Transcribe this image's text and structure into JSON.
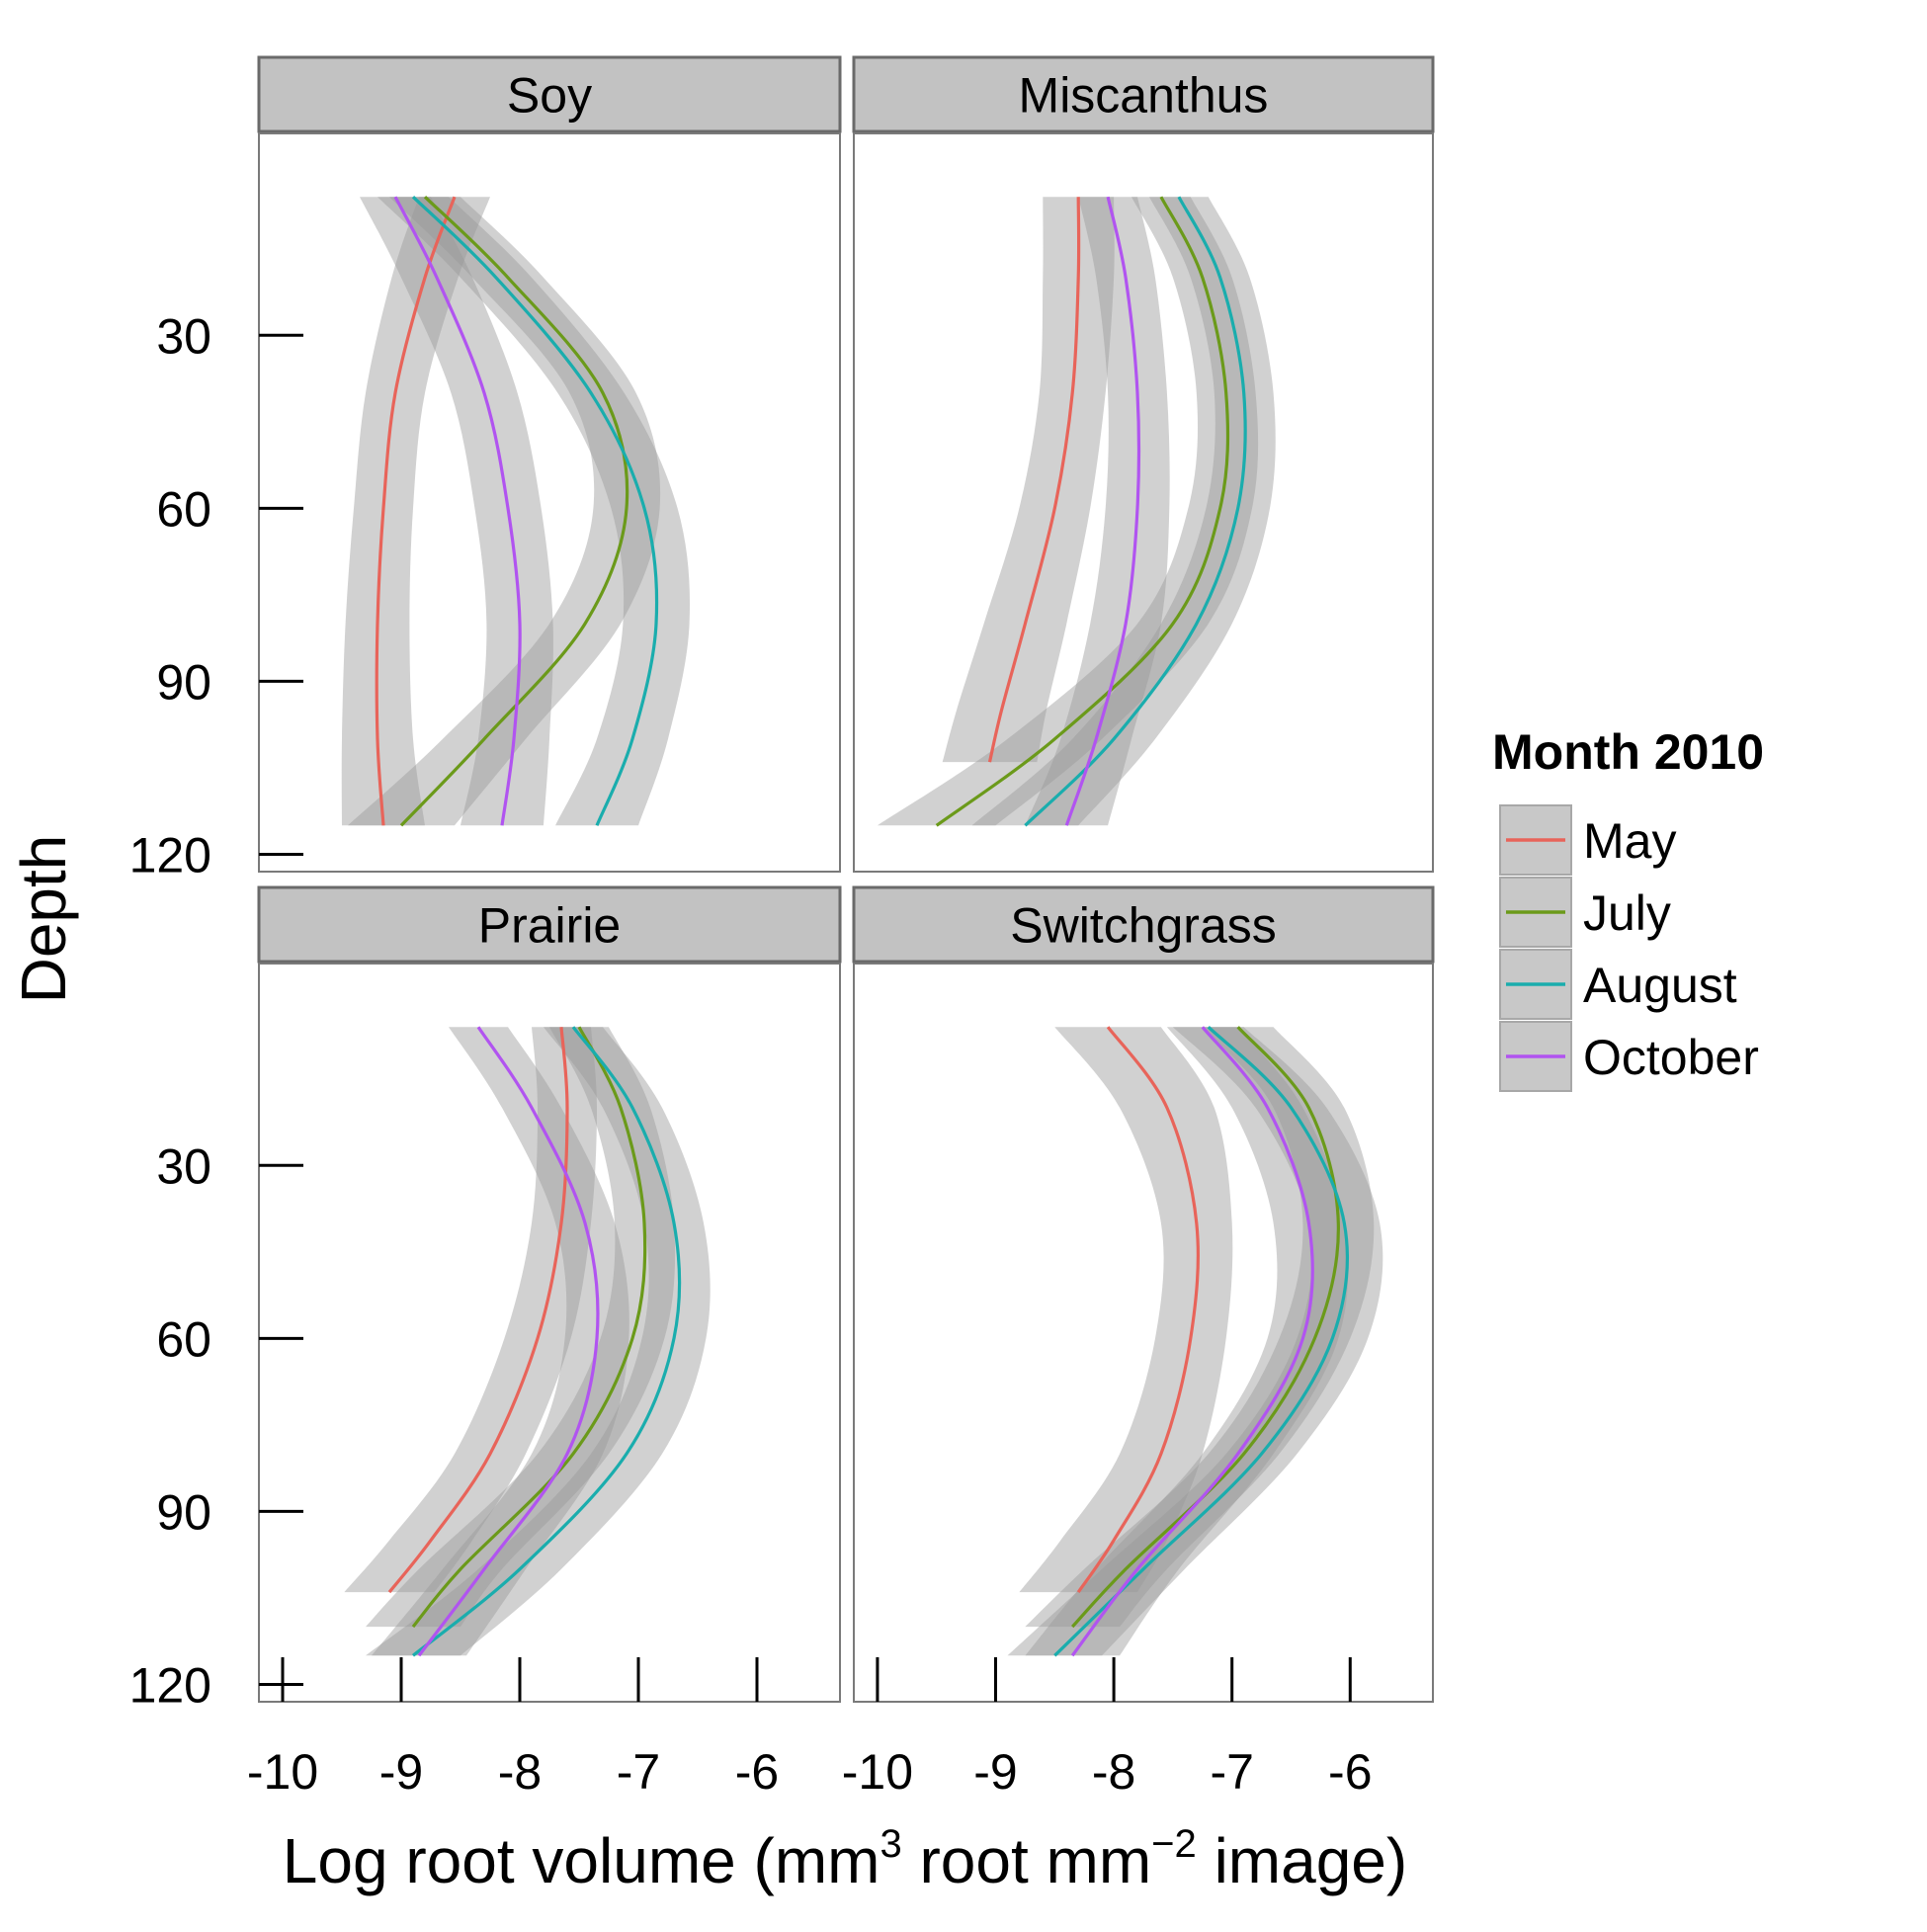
{
  "chart_data": {
    "type": "line",
    "facets": [
      "Soy",
      "Miscanthus",
      "Prairie",
      "Switchgrass"
    ],
    "xlabel": "Log root volume (mm",
    "xlabel_sup1": "3",
    "xlabel_mid": " root mm",
    "xlabel_sup2": "−2",
    "xlabel_end": " image)",
    "ylabel": "Depth",
    "xlim": [
      -10.2,
      -5.3
    ],
    "ylim": [
      -5,
      123
    ],
    "y_reversed": true,
    "x_ticks": [
      "-10",
      "-9",
      "-8",
      "-7",
      "-6"
    ],
    "y_ticks": [
      "30",
      "60",
      "90",
      "120"
    ],
    "legend": {
      "title": "Month 2010",
      "position": "right",
      "entries": [
        {
          "label": "May",
          "color": "#e8645a"
        },
        {
          "label": "July",
          "color": "#6b9a1a"
        },
        {
          "label": "August",
          "color": "#1aadad"
        },
        {
          "label": "October",
          "color": "#b154f0"
        }
      ]
    },
    "panels": [
      {
        "name": "Soy",
        "series": [
          {
            "name": "May",
            "depth": [
              6,
              20,
              40,
              60,
              80,
              100,
              115
            ],
            "x": [
              -8.55,
              -8.8,
              -9.05,
              -9.15,
              -9.2,
              -9.2,
              -9.15
            ],
            "se": [
              0.3,
              0.28,
              0.25,
              0.25,
              0.27,
              0.3,
              0.35
            ]
          },
          {
            "name": "July",
            "depth": [
              6,
              20,
              40,
              60,
              80,
              100,
              115
            ],
            "x": [
              -8.8,
              -8.1,
              -7.3,
              -7.1,
              -7.45,
              -8.3,
              -9.0
            ],
            "se": [
              0.3,
              0.3,
              0.28,
              0.28,
              0.3,
              0.35,
              0.45
            ]
          },
          {
            "name": "August",
            "depth": [
              6,
              20,
              40,
              60,
              80,
              100,
              115
            ],
            "x": [
              -8.9,
              -8.2,
              -7.4,
              -6.95,
              -6.85,
              -7.05,
              -7.35
            ],
            "se": [
              0.3,
              0.3,
              0.28,
              0.28,
              0.28,
              0.3,
              0.35
            ]
          },
          {
            "name": "October",
            "depth": [
              6,
              20,
              40,
              60,
              80,
              100,
              115
            ],
            "x": [
              -9.05,
              -8.7,
              -8.3,
              -8.1,
              -8.0,
              -8.05,
              -8.15
            ],
            "se": [
              0.3,
              0.3,
              0.28,
              0.28,
              0.28,
              0.3,
              0.35
            ]
          }
        ]
      },
      {
        "name": "Miscanthus",
        "series": [
          {
            "name": "May",
            "depth": [
              6,
              20,
              40,
              60,
              80,
              95,
              104
            ],
            "x": [
              -8.3,
              -8.3,
              -8.35,
              -8.5,
              -8.75,
              -8.95,
              -9.05
            ],
            "se": [
              0.3,
              0.3,
              0.28,
              0.3,
              0.35,
              0.38,
              0.4
            ]
          },
          {
            "name": "July",
            "depth": [
              6,
              20,
              40,
              60,
              80,
              100,
              115
            ],
            "x": [
              -7.6,
              -7.25,
              -7.05,
              -7.1,
              -7.5,
              -8.5,
              -9.5
            ],
            "se": [
              0.25,
              0.25,
              0.25,
              0.27,
              0.3,
              0.4,
              0.5
            ]
          },
          {
            "name": "August",
            "depth": [
              6,
              20,
              40,
              60,
              80,
              100,
              115
            ],
            "x": [
              -7.45,
              -7.1,
              -6.9,
              -6.95,
              -7.3,
              -8.0,
              -8.75
            ],
            "se": [
              0.25,
              0.25,
              0.25,
              0.27,
              0.3,
              0.35,
              0.45
            ]
          },
          {
            "name": "October",
            "depth": [
              6,
              20,
              40,
              60,
              80,
              100,
              115
            ],
            "x": [
              -8.05,
              -7.9,
              -7.8,
              -7.8,
              -7.9,
              -8.15,
              -8.4
            ],
            "se": [
              0.25,
              0.25,
              0.25,
              0.27,
              0.3,
              0.3,
              0.35
            ]
          }
        ]
      },
      {
        "name": "Prairie",
        "series": [
          {
            "name": "May",
            "depth": [
              6,
              20,
              40,
              60,
              80,
              95,
              104
            ],
            "x": [
              -7.65,
              -7.6,
              -7.65,
              -7.85,
              -8.25,
              -8.75,
              -9.1
            ],
            "se": [
              0.25,
              0.25,
              0.25,
              0.28,
              0.3,
              0.35,
              0.38
            ]
          },
          {
            "name": "July",
            "depth": [
              6,
              20,
              40,
              60,
              80,
              100,
              110
            ],
            "x": [
              -7.5,
              -7.15,
              -6.95,
              -7.05,
              -7.55,
              -8.5,
              -8.9
            ],
            "se": [
              0.25,
              0.25,
              0.25,
              0.27,
              0.3,
              0.35,
              0.4
            ]
          },
          {
            "name": "August",
            "depth": [
              6,
              20,
              40,
              60,
              80,
              100,
              115
            ],
            "x": [
              -7.55,
              -7.05,
              -6.7,
              -6.7,
              -7.1,
              -8.0,
              -8.9
            ],
            "se": [
              0.25,
              0.25,
              0.25,
              0.27,
              0.3,
              0.35,
              0.4
            ]
          },
          {
            "name": "October",
            "depth": [
              6,
              20,
              40,
              60,
              80,
              100,
              115
            ],
            "x": [
              -8.35,
              -7.9,
              -7.45,
              -7.35,
              -7.6,
              -8.3,
              -8.85
            ],
            "se": [
              0.25,
              0.25,
              0.25,
              0.27,
              0.3,
              0.35,
              0.4
            ]
          }
        ]
      },
      {
        "name": "Switchgrass",
        "series": [
          {
            "name": "May",
            "depth": [
              6,
              20,
              40,
              60,
              80,
              95,
              104
            ],
            "x": [
              -8.05,
              -7.55,
              -7.3,
              -7.35,
              -7.6,
              -8.0,
              -8.3
            ],
            "se": [
              0.45,
              0.4,
              0.3,
              0.3,
              0.35,
              0.45,
              0.5
            ]
          },
          {
            "name": "July",
            "depth": [
              6,
              20,
              40,
              60,
              80,
              100,
              110
            ],
            "x": [
              -6.95,
              -6.35,
              -6.1,
              -6.3,
              -6.9,
              -7.9,
              -8.35
            ],
            "se": [
              0.3,
              0.3,
              0.3,
              0.3,
              0.3,
              0.35,
              0.4
            ]
          },
          {
            "name": "August",
            "depth": [
              6,
              20,
              40,
              60,
              80,
              100,
              115
            ],
            "x": [
              -7.2,
              -6.5,
              -6.05,
              -6.15,
              -6.75,
              -7.75,
              -8.5
            ],
            "se": [
              0.3,
              0.3,
              0.3,
              0.3,
              0.3,
              0.35,
              0.4
            ]
          },
          {
            "name": "October",
            "depth": [
              6,
              20,
              40,
              60,
              80,
              100,
              115
            ],
            "x": [
              -7.25,
              -6.7,
              -6.35,
              -6.4,
              -6.95,
              -7.8,
              -8.35
            ],
            "se": [
              0.3,
              0.3,
              0.3,
              0.3,
              0.3,
              0.35,
              0.4
            ]
          }
        ]
      }
    ]
  }
}
